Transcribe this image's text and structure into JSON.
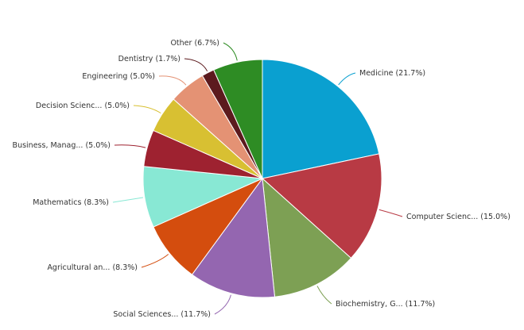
{
  "chart_data": {
    "type": "pie",
    "title": "",
    "legend": "none",
    "data_labels": "outside-with-leader-lines",
    "slices": [
      {
        "label": "Medicine",
        "display_label": "Medicine (21.7%)",
        "value": 21.7,
        "color": "#0aa0d0"
      },
      {
        "label": "Computer Scienc...",
        "display_label": "Computer Scienc... (15.0%)",
        "value": 15.0,
        "color": "#b83a44"
      },
      {
        "label": "Biochemistry, G...",
        "display_label": "Biochemistry, G... (11.7%)",
        "value": 11.7,
        "color": "#7da054"
      },
      {
        "label": "Social Sciences...",
        "display_label": "Social Sciences... (11.7%)",
        "value": 11.7,
        "color": "#9466b0"
      },
      {
        "label": "Agricultural an...",
        "display_label": "Agricultural an... (8.3%)",
        "value": 8.3,
        "color": "#d44d0e"
      },
      {
        "label": "Mathematics",
        "display_label": "Mathematics (8.3%)",
        "value": 8.3,
        "color": "#88e8d4"
      },
      {
        "label": "Business, Manag...",
        "display_label": "Business, Manag... (5.0%)",
        "value": 5.0,
        "color": "#9e2230"
      },
      {
        "label": "Decision Scienc...",
        "display_label": "Decision Scienc... (5.0%)",
        "value": 5.0,
        "color": "#d8c032"
      },
      {
        "label": "Engineering",
        "display_label": "Engineering (5.0%)",
        "value": 5.0,
        "color": "#e49274"
      },
      {
        "label": "Dentistry",
        "display_label": "Dentistry (1.7%)",
        "value": 1.7,
        "color": "#5c1a1e"
      },
      {
        "label": "Other",
        "display_label": "Other (6.7%)",
        "value": 6.7,
        "color": "#2e8c24"
      }
    ]
  }
}
